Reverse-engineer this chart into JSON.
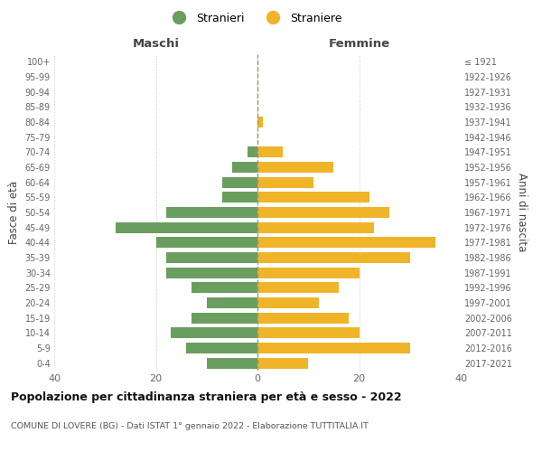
{
  "age_groups": [
    "0-4",
    "5-9",
    "10-14",
    "15-19",
    "20-24",
    "25-29",
    "30-34",
    "35-39",
    "40-44",
    "45-49",
    "50-54",
    "55-59",
    "60-64",
    "65-69",
    "70-74",
    "75-79",
    "80-84",
    "85-89",
    "90-94",
    "95-99",
    "100+"
  ],
  "birth_years": [
    "2017-2021",
    "2012-2016",
    "2007-2011",
    "2002-2006",
    "1997-2001",
    "1992-1996",
    "1987-1991",
    "1982-1986",
    "1977-1981",
    "1972-1976",
    "1967-1971",
    "1962-1966",
    "1957-1961",
    "1952-1956",
    "1947-1951",
    "1942-1946",
    "1937-1941",
    "1932-1936",
    "1927-1931",
    "1922-1926",
    "≤ 1921"
  ],
  "males": [
    10,
    14,
    17,
    13,
    10,
    13,
    18,
    18,
    20,
    28,
    18,
    7,
    7,
    5,
    2,
    0,
    0,
    0,
    0,
    0,
    0
  ],
  "females": [
    10,
    30,
    20,
    18,
    12,
    16,
    20,
    30,
    35,
    23,
    26,
    22,
    11,
    15,
    5,
    0,
    1,
    0,
    0,
    0,
    0
  ],
  "male_color": "#6a9e5e",
  "female_color": "#f0b429",
  "background_color": "#ffffff",
  "grid_color": "#cccccc",
  "title": "Popolazione per cittadinanza straniera per età e sesso - 2022",
  "subtitle": "COMUNE DI LOVERE (BG) - Dati ISTAT 1° gennaio 2022 - Elaborazione TUTTITALIA.IT",
  "xlabel_left": "Maschi",
  "xlabel_right": "Femmine",
  "ylabel": "Fasce di età",
  "ylabel_right": "Anni di nascita",
  "legend_male": "Stranieri",
  "legend_female": "Straniere",
  "xlim": 40,
  "bar_height": 0.72
}
